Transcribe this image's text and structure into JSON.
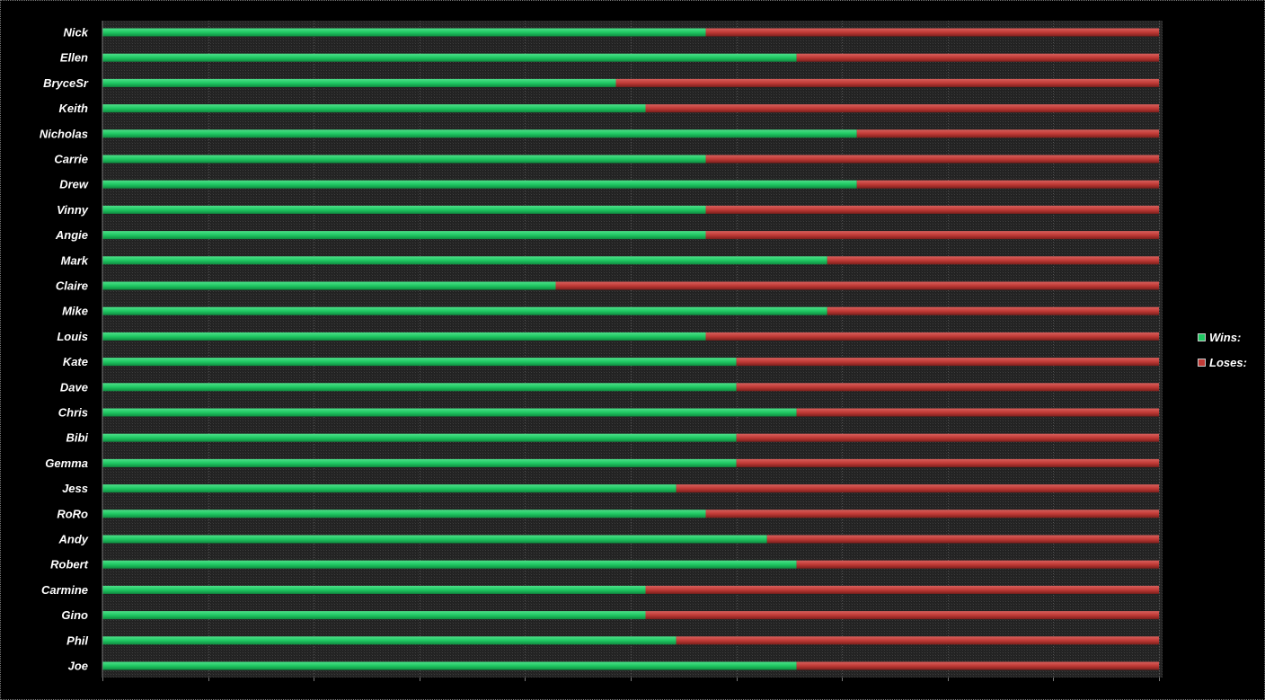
{
  "chart_data": {
    "type": "bar",
    "orientation": "horizontal",
    "stacked": "percent",
    "categories": [
      "Nick",
      "Ellen",
      "BryceSr",
      "Keith",
      "Nicholas",
      "Carrie",
      "Drew",
      "Vinny",
      "Angie",
      "Mark",
      "Claire",
      "Mike",
      "Louis",
      "Kate",
      "Dave",
      "Chris",
      "Bibi",
      "Gemma",
      "Jess",
      "RoRo",
      "Andy",
      "Robert",
      "Carmine",
      "Gino",
      "Phil",
      "Joe"
    ],
    "series": [
      {
        "name": "Wins:",
        "color": "#1fc862",
        "values": [
          57.1,
          65.7,
          48.6,
          51.4,
          71.4,
          57.1,
          71.4,
          57.1,
          57.1,
          68.6,
          42.9,
          68.6,
          57.1,
          60.0,
          60.0,
          65.7,
          60.0,
          60.0,
          54.3,
          57.1,
          62.9,
          65.7,
          51.4,
          51.4,
          54.3,
          65.7
        ]
      },
      {
        "name": "Loses:",
        "color": "#c03a36",
        "values": [
          42.9,
          34.3,
          51.4,
          48.6,
          28.6,
          42.9,
          28.6,
          42.9,
          42.9,
          31.4,
          57.1,
          31.4,
          42.9,
          40.0,
          40.0,
          34.3,
          40.0,
          40.0,
          45.7,
          42.9,
          37.1,
          34.3,
          48.6,
          48.6,
          45.7,
          34.3
        ]
      }
    ],
    "xlim": [
      0,
      100
    ],
    "grid": true,
    "legend_position": "right",
    "title": "",
    "xlabel": "",
    "ylabel": ""
  },
  "legend": {
    "items": [
      {
        "label": "Wins:",
        "color": "#1fc862"
      },
      {
        "label": "Loses:",
        "color": "#c03a36"
      }
    ]
  }
}
